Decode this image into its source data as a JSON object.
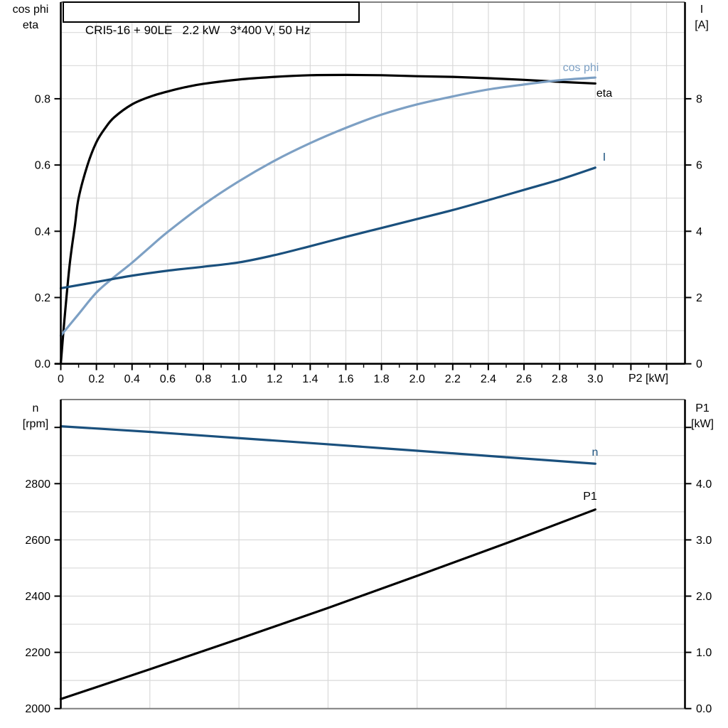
{
  "title": "CRI5-16 + 90LE   2.2 kW   3*400 V, 50 Hz",
  "chart_data": [
    {
      "type": "line",
      "title": "CRI5-16 + 90LE   2.2 kW   3*400 V, 50 Hz",
      "x_axis": {
        "label": "P2 [kW]",
        "min": 0,
        "max": 3.51,
        "major_tick_step": 0.2,
        "minor_tick_step": 0.1,
        "grid_step": 0.2,
        "ticks": [
          {
            "v": 0,
            "label": "0"
          },
          {
            "v": 0.2,
            "label": "0.2"
          },
          {
            "v": 0.4,
            "label": "0.4"
          },
          {
            "v": 0.6,
            "label": "0.6"
          },
          {
            "v": 0.8,
            "label": "0.8"
          },
          {
            "v": 1,
            "label": "1.0"
          },
          {
            "v": 1.2,
            "label": "1.2"
          },
          {
            "v": 1.4,
            "label": "1.4"
          },
          {
            "v": 1.6,
            "label": "1.6"
          },
          {
            "v": 1.8,
            "label": "1.8"
          },
          {
            "v": 2,
            "label": "2.0"
          },
          {
            "v": 2.2,
            "label": "2.2"
          },
          {
            "v": 2.4,
            "label": "2.4"
          },
          {
            "v": 2.6,
            "label": "2.6"
          },
          {
            "v": 2.8,
            "label": "2.8"
          },
          {
            "v": 3,
            "label": "3.0"
          }
        ]
      },
      "left_axis": {
        "label_lines": [
          "cos phi",
          "eta"
        ],
        "min": 0,
        "max": 1.09,
        "grid_step": 0.1,
        "ticks": [
          {
            "v": 0,
            "label": "0.0"
          },
          {
            "v": 0.2,
            "label": "0.2"
          },
          {
            "v": 0.4,
            "label": "0.4"
          },
          {
            "v": 0.6,
            "label": "0.6"
          },
          {
            "v": 0.8,
            "label": "0.8"
          }
        ]
      },
      "right_axis": {
        "label_lines": [
          "I",
          "[A]"
        ],
        "min": 0,
        "max": 10.9,
        "grid_step": 1,
        "ticks": [
          {
            "v": 0,
            "label": "0"
          },
          {
            "v": 2,
            "label": "2"
          },
          {
            "v": 4,
            "label": "4"
          },
          {
            "v": 6,
            "label": "6"
          },
          {
            "v": 8,
            "label": "8"
          }
        ]
      },
      "series": [
        {
          "name": "eta",
          "color": "#000000",
          "axis": "left",
          "points": [
            [
              0,
              0
            ],
            [
              0.02,
              0.13
            ],
            [
              0.05,
              0.3
            ],
            [
              0.08,
              0.42
            ],
            [
              0.1,
              0.5
            ],
            [
              0.15,
              0.6
            ],
            [
              0.2,
              0.669
            ],
            [
              0.25,
              0.712
            ],
            [
              0.3,
              0.744
            ],
            [
              0.4,
              0.783
            ],
            [
              0.5,
              0.806
            ],
            [
              0.6,
              0.822
            ],
            [
              0.7,
              0.835
            ],
            [
              0.8,
              0.845
            ],
            [
              1,
              0.858
            ],
            [
              1.2,
              0.866
            ],
            [
              1.4,
              0.871
            ],
            [
              1.6,
              0.872
            ],
            [
              1.8,
              0.871
            ],
            [
              2,
              0.868
            ],
            [
              2.2,
              0.866
            ],
            [
              2.4,
              0.862
            ],
            [
              2.6,
              0.857
            ],
            [
              2.8,
              0.851
            ],
            [
              3,
              0.846
            ]
          ]
        },
        {
          "name": "cos phi",
          "color": "#7da0c4",
          "axis": "left",
          "points": [
            [
              0,
              0.085
            ],
            [
              0.1,
              0.15
            ],
            [
              0.2,
              0.215
            ],
            [
              0.3,
              0.262
            ],
            [
              0.4,
              0.305
            ],
            [
              0.5,
              0.352
            ],
            [
              0.6,
              0.398
            ],
            [
              0.8,
              0.48
            ],
            [
              1,
              0.551
            ],
            [
              1.2,
              0.613
            ],
            [
              1.4,
              0.666
            ],
            [
              1.6,
              0.712
            ],
            [
              1.8,
              0.752
            ],
            [
              2,
              0.783
            ],
            [
              2.2,
              0.807
            ],
            [
              2.4,
              0.828
            ],
            [
              2.6,
              0.843
            ],
            [
              2.8,
              0.856
            ],
            [
              3,
              0.864
            ]
          ]
        },
        {
          "name": "I",
          "color": "#1a507d",
          "axis": "right",
          "points": [
            [
              0,
              2.28
            ],
            [
              0.2,
              2.47
            ],
            [
              0.4,
              2.66
            ],
            [
              0.6,
              2.81
            ],
            [
              0.8,
              2.93
            ],
            [
              1,
              3.06
            ],
            [
              1.2,
              3.28
            ],
            [
              1.4,
              3.55
            ],
            [
              1.6,
              3.83
            ],
            [
              1.8,
              4.1
            ],
            [
              2,
              4.37
            ],
            [
              2.2,
              4.64
            ],
            [
              2.4,
              4.94
            ],
            [
              2.6,
              5.25
            ],
            [
              2.8,
              5.56
            ],
            [
              3,
              5.92
            ]
          ]
        }
      ]
    },
    {
      "type": "line",
      "x_axis": {
        "label": "",
        "min": 0,
        "max": 3.51,
        "grid_step": 0.5,
        "ticks": []
      },
      "left_axis": {
        "label_lines": [
          "n",
          "[rpm]"
        ],
        "min": 2000,
        "max": 3098,
        "grid_step": 100,
        "ticks": [
          {
            "v": 2000,
            "label": "2000"
          },
          {
            "v": 2200,
            "label": "2200"
          },
          {
            "v": 2400,
            "label": "2400"
          },
          {
            "v": 2600,
            "label": "2600"
          },
          {
            "v": 2800,
            "label": "2800"
          },
          {
            "v": 3000,
            "label": ""
          }
        ]
      },
      "right_axis": {
        "label_lines": [
          "P1",
          "[kW]"
        ],
        "min": 0,
        "max": 5.49,
        "grid_step": 0.5,
        "ticks": [
          {
            "v": 0,
            "label": "0.0"
          },
          {
            "v": 1,
            "label": "1.0"
          },
          {
            "v": 2,
            "label": "2.0"
          },
          {
            "v": 3,
            "label": "3.0"
          },
          {
            "v": 4,
            "label": "4.0"
          },
          {
            "v": 5,
            "label": ""
          }
        ]
      },
      "series": [
        {
          "name": "n",
          "color": "#1a507d",
          "axis": "left",
          "points": [
            [
              0,
              3004
            ],
            [
              0.5,
              2984
            ],
            [
              1,
              2962
            ],
            [
              1.5,
              2940
            ],
            [
              2,
              2917
            ],
            [
              2.5,
              2894
            ],
            [
              3,
              2871
            ]
          ]
        },
        {
          "name": "P1",
          "color": "#000000",
          "axis": "right",
          "points": [
            [
              0,
              0.17
            ],
            [
              0.5,
              0.7
            ],
            [
              1,
              1.24
            ],
            [
              1.5,
              1.79
            ],
            [
              2,
              2.36
            ],
            [
              2.5,
              2.94
            ],
            [
              3,
              3.54
            ]
          ]
        }
      ]
    }
  ]
}
